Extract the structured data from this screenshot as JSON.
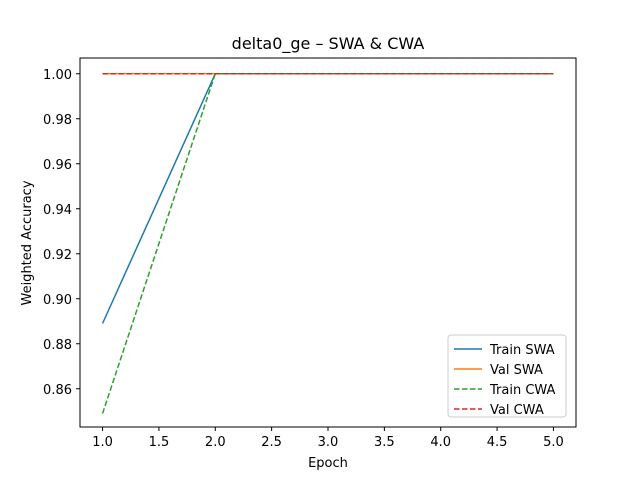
{
  "chart_data": {
    "type": "line",
    "title": "delta0_ge – SWA & CWA",
    "xlabel": "Epoch",
    "ylabel": "Weighted Accuracy",
    "xlim": [
      0.8,
      5.2
    ],
    "ylim": [
      0.843,
      1.007
    ],
    "xticks": [
      1.0,
      1.5,
      2.0,
      2.5,
      3.0,
      3.5,
      4.0,
      4.5,
      5.0
    ],
    "xtick_labels": [
      "1.0",
      "1.5",
      "2.0",
      "2.5",
      "3.0",
      "3.5",
      "4.0",
      "4.5",
      "5.0"
    ],
    "yticks": [
      0.86,
      0.88,
      0.9,
      0.92,
      0.94,
      0.96,
      0.98,
      1.0
    ],
    "ytick_labels": [
      "0.86",
      "0.88",
      "0.90",
      "0.92",
      "0.94",
      "0.96",
      "0.98",
      "1.00"
    ],
    "grid": false,
    "legend_position": "lower-right",
    "x": [
      1,
      2,
      3,
      4,
      5
    ],
    "series": [
      {
        "name": "Train SWA",
        "values": [
          0.889,
          1.0,
          1.0,
          1.0,
          1.0
        ],
        "color": "#1f77b4",
        "dash": "solid"
      },
      {
        "name": "Val SWA",
        "values": [
          1.0,
          1.0,
          1.0,
          1.0,
          1.0
        ],
        "color": "#ff7f0e",
        "dash": "solid"
      },
      {
        "name": "Train CWA",
        "values": [
          0.849,
          1.0,
          1.0,
          1.0,
          1.0
        ],
        "color": "#2ca02c",
        "dash": "dashed"
      },
      {
        "name": "Val CWA",
        "values": [
          1.0,
          1.0,
          1.0,
          1.0,
          1.0
        ],
        "color": "#d62728",
        "dash": "dashed"
      }
    ]
  }
}
